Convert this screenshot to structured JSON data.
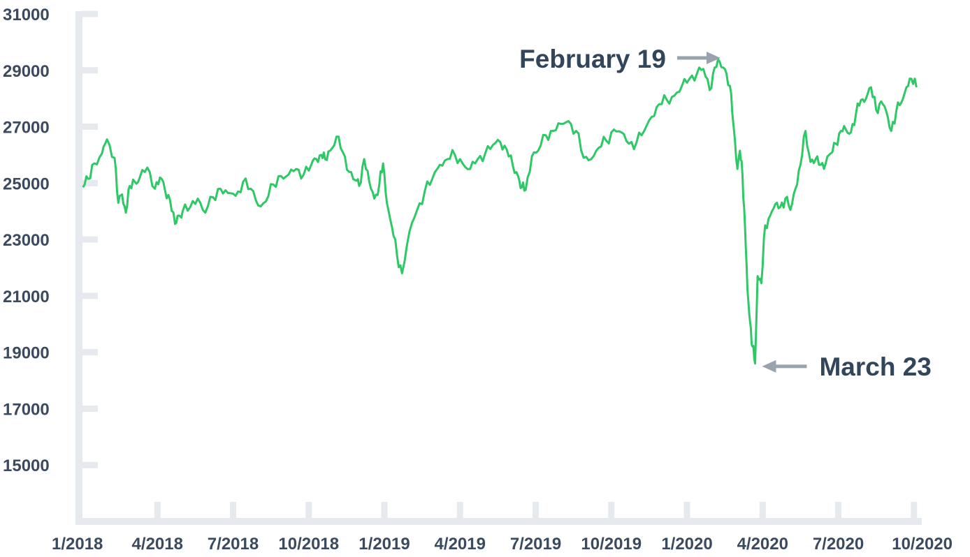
{
  "chart_data": {
    "type": "line",
    "title": "",
    "xlabel": "",
    "ylabel": "",
    "y_ticks": [
      "31000",
      "29000",
      "27000",
      "25000",
      "23000",
      "21000",
      "19000",
      "17000",
      "15000"
    ],
    "y_tick_values": [
      31000,
      29000,
      27000,
      25000,
      23000,
      21000,
      19000,
      17000,
      15000
    ],
    "ylim": [
      13000,
      31000
    ],
    "x_ticks": [
      "1/2018",
      "4/2018",
      "7/2018",
      "10/2018",
      "1/2019",
      "4/2019",
      "7/2019",
      "10/2019",
      "1/2020",
      "4/2020",
      "7/2020",
      "10/2020"
    ],
    "x_tick_months": [
      0,
      3,
      6,
      9,
      12,
      15,
      18,
      21,
      24,
      27,
      30,
      33
    ],
    "xlim_months": [
      0,
      33.2
    ],
    "grid": false,
    "line_color": "#2ec866",
    "axis_color": "#e6e9ed",
    "series": [
      {
        "x_months": [
          0.05,
          0.25,
          0.5,
          0.8,
          1.0,
          1.3,
          1.45,
          1.6,
          1.75,
          1.9,
          2.1,
          2.3,
          2.6,
          2.9,
          3.1,
          3.3,
          3.5,
          3.7,
          3.85,
          4.0,
          4.3,
          4.6,
          4.9,
          5.2,
          5.5,
          5.8,
          6.1,
          6.4,
          6.7,
          7.0,
          7.3,
          7.6,
          7.9,
          8.2,
          8.5,
          8.8,
          9.1,
          9.3,
          9.5,
          9.65,
          9.85,
          10.1,
          10.35,
          10.6,
          10.85,
          11.0,
          11.2,
          11.4,
          11.6,
          11.8,
          11.95,
          12.1,
          12.3,
          12.5,
          12.7,
          13.0,
          13.3,
          13.6,
          13.9,
          14.2,
          14.5,
          14.8,
          15.1,
          15.4,
          15.7,
          16.0,
          16.3,
          16.6,
          16.85,
          17.1,
          17.3,
          17.45,
          17.6,
          17.85,
          18.1,
          18.4,
          18.7,
          19.0,
          19.3,
          19.6,
          19.9,
          20.2,
          20.5,
          20.8,
          21.1,
          21.4,
          21.7,
          22.0,
          22.3,
          22.6,
          22.9,
          23.2,
          23.5,
          23.8,
          24.1,
          24.4,
          24.65,
          24.9,
          25.1,
          25.3,
          25.5,
          25.7,
          25.85,
          26.0,
          26.1,
          26.2,
          26.3,
          26.4,
          26.5,
          26.6,
          26.7,
          26.8,
          26.95,
          27.1,
          27.3,
          27.5,
          27.7,
          27.9,
          28.1,
          28.3,
          28.5,
          28.7,
          28.9,
          29.1,
          29.3,
          29.5,
          29.7,
          29.9,
          30.1,
          30.3,
          30.5,
          30.7,
          30.9,
          31.1,
          31.3,
          31.5,
          31.7,
          31.9,
          32.1,
          32.3,
          32.5,
          32.7,
          32.9,
          33.1
        ],
        "values": [
          24850,
          25150,
          25700,
          26050,
          26550,
          25900,
          24300,
          24600,
          23950,
          24900,
          25050,
          25200,
          25550,
          24800,
          25200,
          24750,
          24400,
          23550,
          23850,
          24000,
          24150,
          24450,
          23950,
          24500,
          24800,
          24650,
          24550,
          25050,
          24800,
          24200,
          24350,
          24950,
          25250,
          25300,
          25500,
          25300,
          25650,
          25850,
          26000,
          25850,
          26150,
          26650,
          26100,
          25400,
          25100,
          24900,
          25850,
          25050,
          24450,
          24950,
          25700,
          24300,
          23450,
          22450,
          21800,
          23300,
          24050,
          24700,
          25150,
          25650,
          25850,
          26000,
          25700,
          25500,
          25850,
          26050,
          26350,
          26450,
          26200,
          25600,
          25250,
          24850,
          24750,
          25950,
          26150,
          26700,
          26850,
          27100,
          27200,
          26850,
          25900,
          25850,
          26250,
          26500,
          26900,
          26800,
          26400,
          26450,
          26850,
          27350,
          27800,
          27950,
          28100,
          28450,
          28700,
          28900,
          29050,
          28300,
          29100,
          29300,
          29050,
          28450,
          27000,
          25500,
          26150,
          25300,
          23500,
          21200,
          20100,
          19200,
          18600,
          21700,
          21450,
          23500,
          23850,
          24250,
          24150,
          24450,
          24050,
          24800,
          25650,
          26850,
          25750,
          25850,
          25650,
          25700,
          26050,
          26400,
          26850,
          26900,
          26800,
          27450,
          27950,
          28000,
          28400,
          27600,
          27900,
          27550,
          26850,
          27550,
          27850,
          28400,
          28700,
          28400
        ]
      }
    ],
    "annotations": [
      {
        "label": "February 19",
        "x_month": 25.55,
        "value": 29440,
        "arrow": "right"
      },
      {
        "label": "March 23",
        "x_month": 26.7,
        "value": 18600,
        "arrow": "left"
      }
    ]
  }
}
